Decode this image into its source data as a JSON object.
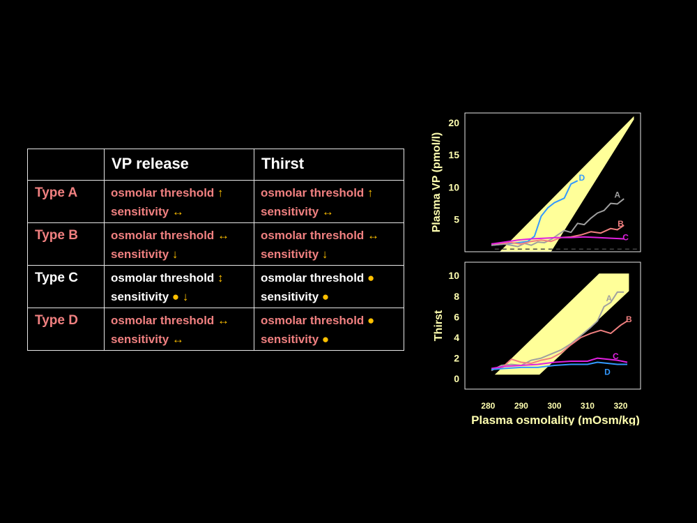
{
  "table": {
    "headers": [
      "",
      "VP release",
      "Thirst"
    ],
    "rows": [
      {
        "type": "Type A",
        "type_color": "pink",
        "vp": {
          "color": "pink",
          "line1": "osmolar threshold",
          "a1": "↑",
          "line2": "sensitivity",
          "a2": "↔"
        },
        "thirst": {
          "color": "pink",
          "line1": "osmolar threshold",
          "a1": "↑",
          "line2": "sensitivity",
          "a2": "↔"
        }
      },
      {
        "type": "Type B",
        "type_color": "pink",
        "vp": {
          "color": "pink",
          "line1": "osmolar threshold",
          "a1": "↔",
          "line2": "sensitivity",
          "a2": "↓"
        },
        "thirst": {
          "color": "pink",
          "line1": "osmolar threshold",
          "a1": "↔",
          "line2": "sensitivity",
          "a2": "↓"
        }
      },
      {
        "type": "Type C",
        "type_color": "white",
        "vp": {
          "color": "white",
          "line1": "osmolar threshold",
          "a1": "↕",
          "line2": "sensitivity",
          "a2": "● ↓"
        },
        "thirst": {
          "color": "white",
          "line1": "osmolar threshold",
          "a1": "●",
          "line2": "sensitivity",
          "a2": "●"
        }
      },
      {
        "type": "Type D",
        "type_color": "pink",
        "vp": {
          "color": "pink",
          "line1": "osmolar threshold",
          "a1": "↔",
          "line2": "sensitivity",
          "a2": "↔"
        },
        "thirst": {
          "color": "pink",
          "line1": "osmolar threshold",
          "a1": "●",
          "line2": "sensitivity",
          "a2": "●"
        }
      }
    ]
  },
  "colors": {
    "axis_text": "#ffffb0",
    "band": "#ffff99",
    "A": "#a0a0a0",
    "B": "#f08080",
    "C": "#e020e0",
    "D": "#3399ff",
    "background": "#000000"
  },
  "chart_data": [
    {
      "type": "line",
      "title": "",
      "xlabel": "",
      "ylabel": "Plasma VP (pmol/l)",
      "xlim": [
        273,
        326
      ],
      "ylim": [
        0,
        21.5
      ],
      "yticks": [
        5,
        10,
        15,
        20
      ],
      "ytick_labels": [
        "5",
        "10",
        "15",
        "20"
      ],
      "normal_band": [
        [
          283.5,
          0
        ],
        [
          299,
          0
        ],
        [
          324,
          20.5
        ],
        [
          324,
          21
        ],
        [
          283.5,
          0
        ]
      ],
      "baseline_dashed": 0.4,
      "series": [
        {
          "name": "D",
          "color": "#3399ff",
          "x": [
            281,
            285,
            289,
            292,
            294,
            296,
            298,
            300,
            303,
            305,
            307
          ],
          "y": [
            1.0,
            1.2,
            1.4,
            1.6,
            2.4,
            5.5,
            6.8,
            7.6,
            8.3,
            10.5,
            11.0
          ]
        },
        {
          "name": "A",
          "color": "#a0a0a0",
          "x": [
            281,
            285,
            289,
            291,
            293,
            295,
            297,
            299,
            301,
            303,
            305,
            307,
            309,
            311,
            313,
            315,
            317,
            319,
            321
          ],
          "y": [
            1.0,
            1.2,
            0.8,
            1.3,
            1.0,
            1.5,
            1.4,
            1.9,
            2.6,
            3.3,
            3.0,
            4.4,
            4.2,
            5.2,
            6.0,
            6.4,
            7.5,
            7.4,
            8.2
          ]
        },
        {
          "name": "B",
          "color": "#f08080",
          "x": [
            281,
            284,
            287,
            290,
            293,
            296,
            299,
            302,
            305,
            308,
            311,
            314,
            317,
            319,
            321
          ],
          "y": [
            1.2,
            1.3,
            1.4,
            1.2,
            1.6,
            1.8,
            1.6,
            2.2,
            2.3,
            2.6,
            3.1,
            2.9,
            3.6,
            3.4,
            4.1
          ]
        },
        {
          "name": "C",
          "color": "#e020e0",
          "x": [
            281,
            285,
            289,
            293,
            297,
            301,
            305,
            309,
            313,
            317,
            321
          ],
          "y": [
            1.2,
            1.5,
            1.8,
            2.0,
            2.1,
            2.2,
            2.2,
            2.3,
            2.2,
            2.1,
            2.0
          ]
        }
      ],
      "labels": [
        {
          "text": "D",
          "x": 308.3,
          "y": 11.0,
          "color": "#3399ff"
        },
        {
          "text": "A",
          "x": 319.0,
          "y": 8.4,
          "color": "#a0a0a0"
        },
        {
          "text": "B",
          "x": 320.0,
          "y": 3.9,
          "color": "#f08080"
        },
        {
          "text": "C",
          "x": 321.5,
          "y": 1.8,
          "color": "#e020e0"
        }
      ]
    },
    {
      "type": "line",
      "title": "",
      "xlabel": "Plasma osmolality (mOsm/kg)",
      "ylabel": "Thirst",
      "xlim": [
        273,
        326
      ],
      "ylim": [
        -1.0,
        11.3
      ],
      "xticks": [
        280,
        290,
        300,
        310,
        320
      ],
      "xtick_labels": [
        "280",
        "290",
        "300",
        "310",
        "320"
      ],
      "yticks": [
        0,
        2,
        4,
        6,
        8,
        10
      ],
      "ytick_labels": [
        "0",
        "2",
        "4",
        "6",
        "8",
        "10"
      ],
      "normal_band": [
        [
          282,
          0.4
        ],
        [
          295.5,
          0.4
        ],
        [
          322.5,
          8.5
        ],
        [
          322.5,
          10.2
        ],
        [
          313.5,
          10.2
        ],
        [
          282,
          0.4
        ]
      ],
      "series": [
        {
          "name": "A",
          "color": "#a0a0a0",
          "x": [
            281,
            284,
            287,
            290,
            293,
            296,
            299,
            302,
            305,
            308,
            311,
            313,
            315,
            317,
            319,
            321
          ],
          "y": [
            0.8,
            1.3,
            1.4,
            1.3,
            1.8,
            2.0,
            2.4,
            2.8,
            3.4,
            4.2,
            5.0,
            5.6,
            7.0,
            7.4,
            8.4,
            8.4
          ]
        },
        {
          "name": "B",
          "color": "#f08080",
          "x": [
            281,
            284,
            287,
            290,
            293,
            296,
            299,
            302,
            305,
            308,
            311,
            314,
            317,
            320,
            322
          ],
          "y": [
            0.9,
            1.0,
            1.9,
            1.6,
            1.5,
            1.8,
            2.0,
            2.5,
            3.3,
            4.0,
            4.4,
            4.7,
            4.4,
            5.2,
            5.6
          ]
        },
        {
          "name": "C",
          "color": "#e020e0",
          "x": [
            281,
            285,
            290,
            295,
            300,
            305,
            310,
            313,
            316,
            319,
            322
          ],
          "y": [
            1.0,
            1.2,
            1.3,
            1.4,
            1.6,
            1.7,
            1.7,
            2.0,
            1.9,
            1.8,
            1.6
          ]
        },
        {
          "name": "D",
          "color": "#3399ff",
          "x": [
            281,
            285,
            290,
            295,
            300,
            305,
            310,
            313,
            316,
            319,
            322
          ],
          "y": [
            0.9,
            1.0,
            1.1,
            1.1,
            1.3,
            1.4,
            1.4,
            1.6,
            1.5,
            1.4,
            1.4
          ]
        }
      ],
      "labels": [
        {
          "text": "A",
          "x": 316.5,
          "y": 7.5,
          "color": "#a0a0a0"
        },
        {
          "text": "B",
          "x": 322.5,
          "y": 5.5,
          "color": "#f08080"
        },
        {
          "text": "C",
          "x": 318.5,
          "y": 1.9,
          "color": "#e020e0"
        },
        {
          "text": "D",
          "x": 316.0,
          "y": 0.4,
          "color": "#3399ff"
        }
      ]
    }
  ]
}
